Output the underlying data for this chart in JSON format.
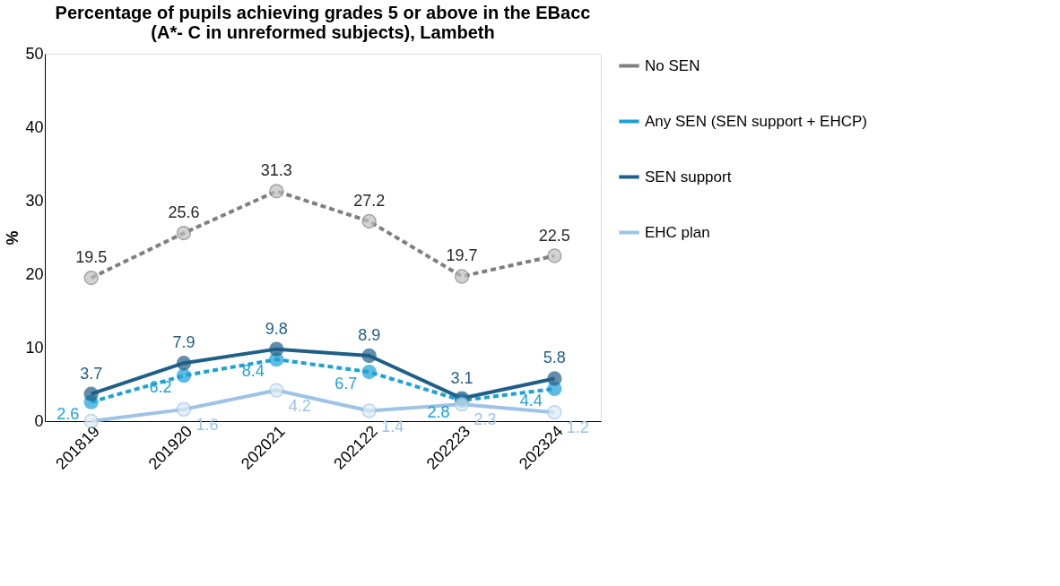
{
  "chart_data": {
    "type": "line",
    "title": "Percentage of pupils achieving grades 5 or above in the EBacc\n(A*- C in unreformed subjects), Lambeth",
    "ylabel": "%",
    "categories": [
      "201819",
      "201920",
      "202021",
      "202122",
      "202223",
      "202324"
    ],
    "ylim": [
      0,
      50
    ],
    "yticks": [
      0,
      10,
      20,
      30,
      40,
      50
    ],
    "grid": false,
    "legend": "right",
    "marker": "circle",
    "series": [
      {
        "name": "No SEN",
        "color": "#7f7f7f",
        "line_style": "dashed",
        "values": [
          19.5,
          25.6,
          31.3,
          27.2,
          19.7,
          22.5
        ],
        "value_labels": [
          "19.5",
          "25.6",
          "31.3",
          "27.2",
          "19.7",
          "22.5"
        ]
      },
      {
        "name": "Any SEN (SEN support + EHCP)",
        "color": "#1ba1d8",
        "line_style": "dashed",
        "values": [
          2.6,
          6.2,
          8.4,
          6.7,
          2.8,
          4.4
        ],
        "value_labels": [
          "2.6",
          "6.2",
          "8.4",
          "6.7",
          "2.8",
          "4.4"
        ]
      },
      {
        "name": "SEN support",
        "color": "#1f5f87",
        "line_style": "solid",
        "values": [
          3.7,
          7.9,
          9.8,
          8.9,
          3.1,
          5.8
        ],
        "value_labels": [
          "3.7",
          "7.9",
          "9.8",
          "8.9",
          "3.1",
          "5.8"
        ]
      },
      {
        "name": "EHC plan",
        "color": "#9dc3e6",
        "line_style": "solid",
        "values": [
          0,
          1.6,
          4.2,
          1.4,
          2.3,
          1.2
        ],
        "value_labels": [
          null,
          "1.6",
          "4.2",
          "1.4",
          "2.3",
          "1.2"
        ]
      }
    ]
  }
}
